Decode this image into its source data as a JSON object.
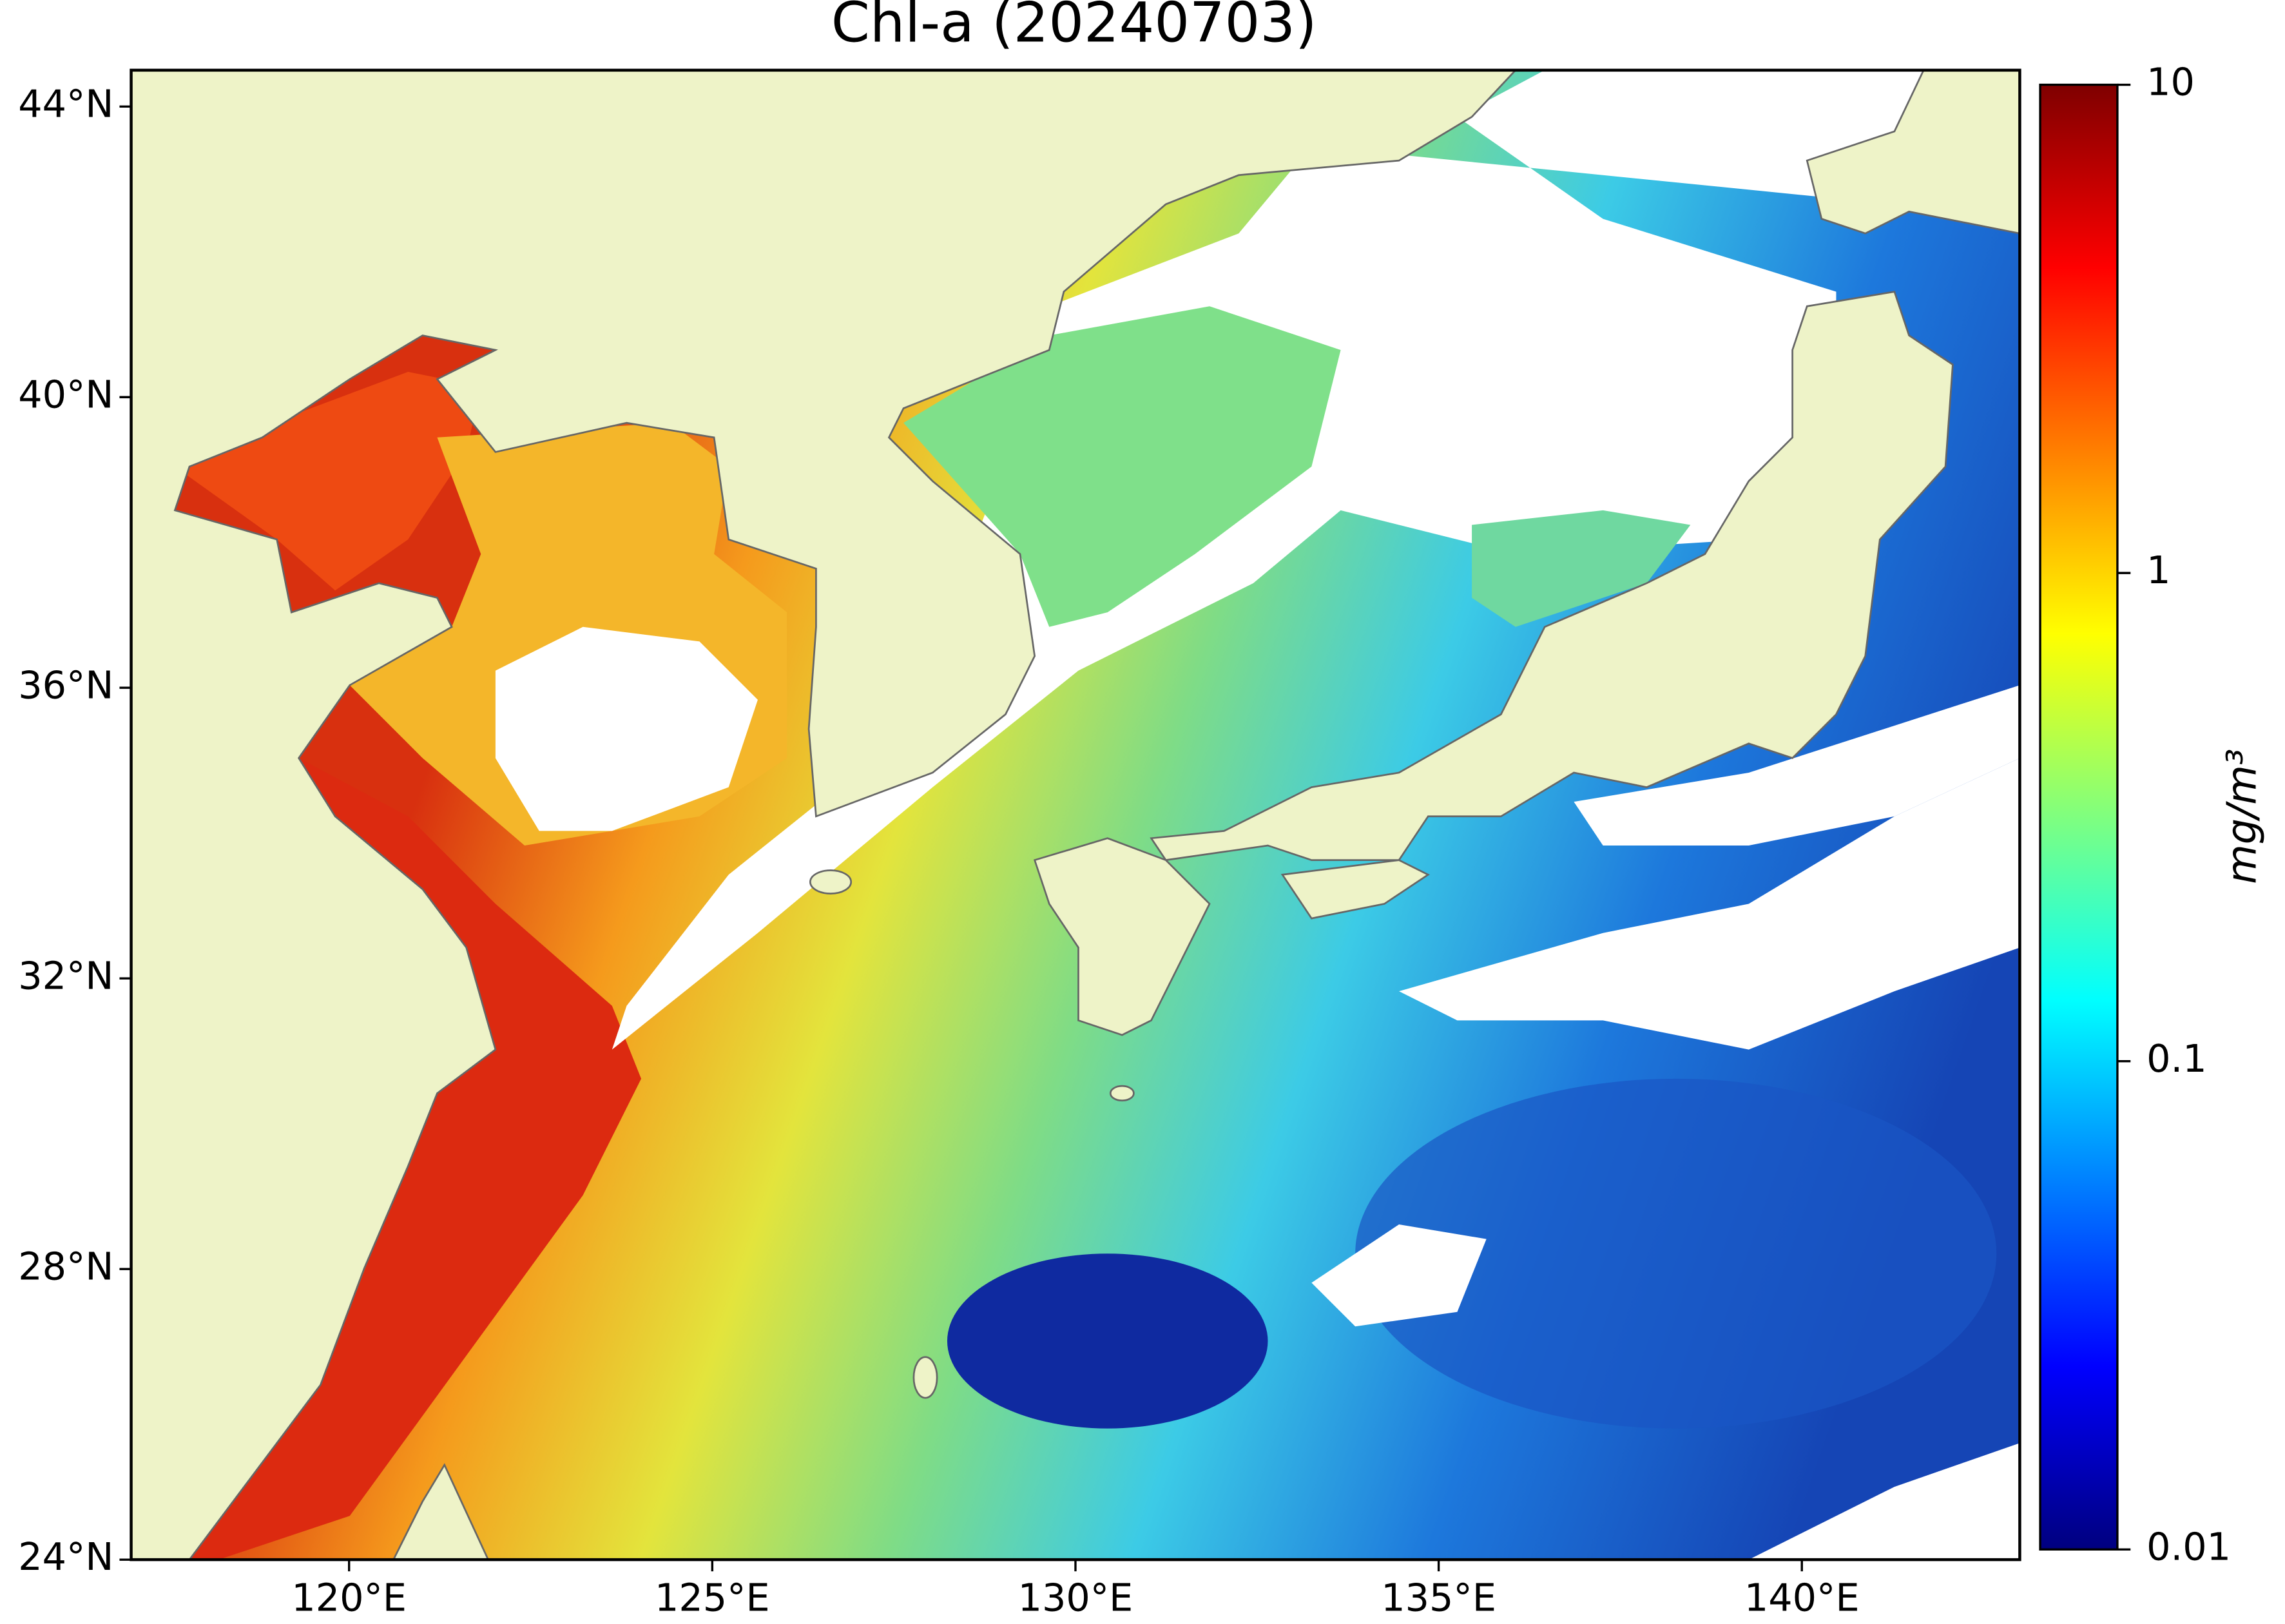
{
  "chart_data": {
    "type": "map",
    "title": "Chl-a (20240703)",
    "xlim": [
      117,
      143
    ],
    "xticks": [
      {
        "value": 120,
        "label": "120°E"
      },
      {
        "value": 125,
        "label": "125°E"
      },
      {
        "value": 130,
        "label": "130°E"
      },
      {
        "value": 135,
        "label": "135°E"
      },
      {
        "value": 140,
        "label": "140°E"
      }
    ],
    "ylim": [
      24,
      44.5
    ],
    "yticks": [
      {
        "value": 24,
        "label": "24°N"
      },
      {
        "value": 28,
        "label": "28°N"
      },
      {
        "value": 32,
        "label": "32°N"
      },
      {
        "value": 36,
        "label": "36°N"
      },
      {
        "value": 40,
        "label": "40°N"
      },
      {
        "value": 44,
        "label": "44°N"
      }
    ],
    "colorbar": {
      "label": "mg/m³",
      "scale": "log",
      "lim": [
        0.01,
        10
      ],
      "ticks": [
        0.01,
        0.1,
        1,
        10
      ],
      "colors": [
        "#00007f",
        "#0000ff",
        "#007fff",
        "#00ffff",
        "#7fff7f",
        "#ffff00",
        "#ff7f00",
        "#ff0000",
        "#7f0000"
      ]
    }
  }
}
